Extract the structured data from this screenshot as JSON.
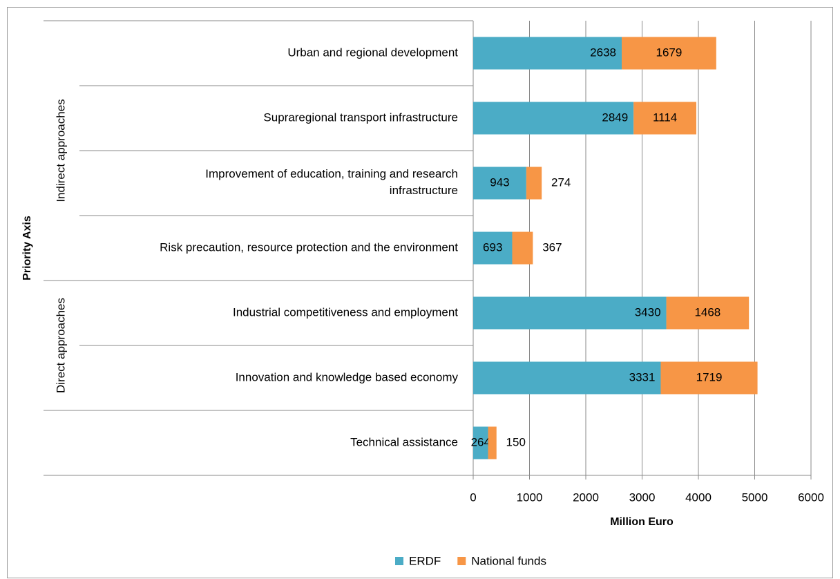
{
  "chart_data": {
    "type": "stacked-barh",
    "xlabel": "Million Euro",
    "ylabel": "Priority Axis",
    "categories": [
      "Urban and regional development",
      "Supraregional transport infrastructure",
      "Improvement of education, training and research infrastructure",
      "Risk precaution, resource protection and the environment",
      "Industrial competitiveness and employment",
      "Innovation and knowledge based economy",
      "Technical assistance"
    ],
    "category_groups": [
      "Indirect approaches",
      "Indirect approaches",
      "Indirect approaches",
      "Indirect approaches",
      "Direct approaches",
      "Direct approaches",
      null
    ],
    "series": [
      {
        "name": "ERDF",
        "color": "#4bacc6",
        "values": [
          2638,
          2849,
          943,
          693,
          3430,
          3331,
          264
        ]
      },
      {
        "name": "National funds",
        "color": "#f79646",
        "values": [
          1679,
          1114,
          274,
          367,
          1468,
          1719,
          150
        ]
      }
    ],
    "xlim": [
      0,
      6000
    ],
    "xticks": [
      0,
      1000,
      2000,
      3000,
      4000,
      5000,
      6000
    ],
    "grid": true,
    "legend": "bottom"
  }
}
